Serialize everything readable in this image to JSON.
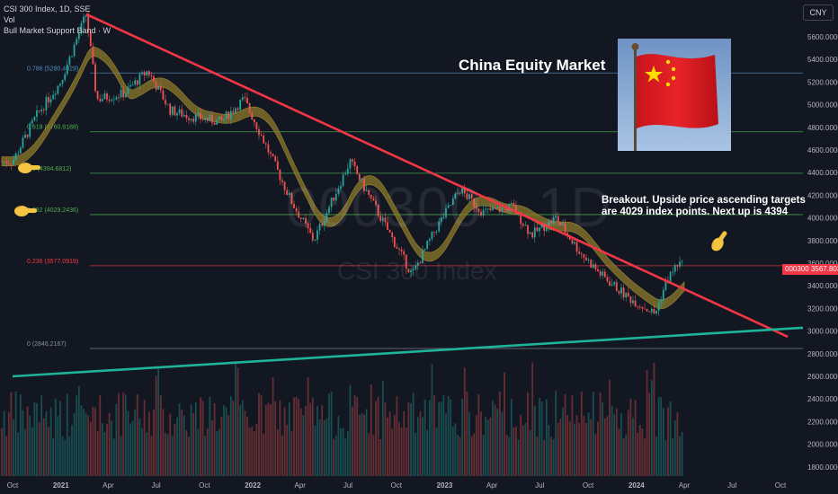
{
  "legend": {
    "symbol_line": "CSI 300 Index, 1D, SSE",
    "vol_label": "Vol",
    "indicator_label": "Bull Market Support Band · W"
  },
  "currency": "CNY",
  "headline": "China Equity Market",
  "note_lines": [
    "Breakout. Upside price ascending targets",
    "are 4029 index points. Next up is 4394"
  ],
  "watermark": {
    "ticker": "000300 · 1D",
    "name": "CSI 300 Index"
  },
  "last_price": {
    "symbol": "000300",
    "value": "3567.8030"
  },
  "colors": {
    "background": "#131722",
    "candle_up": "#26a69a",
    "candle_down": "#ef5350",
    "trendline_down": "#f23645",
    "trendline_up": "#1fb39a",
    "fib_line": "#4caf50",
    "fib_236": "#f23645",
    "band_fill": "#8b7a2b"
  },
  "icons": [
    "pointing-finger-icon",
    "china-flag-image"
  ],
  "chart_data": {
    "type": "candlestick",
    "x_axis": [
      "Oct",
      "2021",
      "Apr",
      "Jul",
      "Oct",
      "2022",
      "Apr",
      "Jul",
      "Oct",
      "2023",
      "Apr",
      "Jul",
      "Oct",
      "2024",
      "Apr",
      "Jul",
      "Oct"
    ],
    "price_axis": [
      5600,
      5400,
      5200,
      5000,
      4800,
      4600,
      4400,
      4200,
      4000,
      3800,
      3600,
      3400,
      3200,
      3000,
      2800,
      2600,
      2400,
      2200,
      2000,
      1800
    ],
    "ylim": [
      1700,
      5800
    ],
    "fib_levels": [
      {
        "ratio": "0.786",
        "value": 5280.4029,
        "label": "0.786 (5280.4029)"
      },
      {
        "ratio": "0.618",
        "value": 4760.8188,
        "label": "0.618 (4760.8188)"
      },
      {
        "ratio": "0.5",
        "value": 4394.6812,
        "label": "0.5 (4394.6812)"
      },
      {
        "ratio": "0.382",
        "value": 4029.2436,
        "label": "0.382 (4029.2436)"
      },
      {
        "ratio": "0.236",
        "value": 3577.0919,
        "label": "0.236 (3577.0919)"
      },
      {
        "ratio": "0",
        "value": 2846.2167,
        "label": "0 (2846.2167)"
      }
    ],
    "price_path": [
      [
        "2020-10-01",
        4500
      ],
      [
        "2020-11-15",
        4900
      ],
      [
        "2020-12-31",
        5200
      ],
      [
        "2021-02-18",
        5800
      ],
      [
        "2021-03-10",
        5050
      ],
      [
        "2021-05-01",
        5100
      ],
      [
        "2021-06-15",
        5300
      ],
      [
        "2021-07-28",
        4950
      ],
      [
        "2021-09-01",
        4900
      ],
      [
        "2021-11-01",
        4850
      ],
      [
        "2021-12-15",
        5050
      ],
      [
        "2022-01-15",
        4750
      ],
      [
        "2022-03-15",
        4150
      ],
      [
        "2022-04-27",
        3800
      ],
      [
        "2022-07-05",
        4500
      ],
      [
        "2022-08-15",
        4150
      ],
      [
        "2022-10-31",
        3500
      ],
      [
        "2022-12-15",
        3900
      ],
      [
        "2023-01-30",
        4250
      ],
      [
        "2023-03-15",
        4050
      ],
      [
        "2023-05-10",
        4100
      ],
      [
        "2023-06-15",
        3850
      ],
      [
        "2023-08-01",
        4000
      ],
      [
        "2023-09-15",
        3700
      ],
      [
        "2023-10-25",
        3500
      ],
      [
        "2023-12-15",
        3300
      ],
      [
        "2024-01-20",
        3200
      ],
      [
        "2024-02-05",
        3150
      ],
      [
        "2024-02-28",
        3450
      ],
      [
        "2024-03-20",
        3600
      ],
      [
        "2024-04-01",
        3568
      ]
    ],
    "trendline_down": [
      [
        "2021-02-18",
        5800
      ],
      [
        "2024-10-15",
        2950
      ]
    ],
    "trendline_up": [
      [
        "2020-10-01",
        2600
      ],
      [
        "2024-11-30",
        2950
      ]
    ]
  }
}
